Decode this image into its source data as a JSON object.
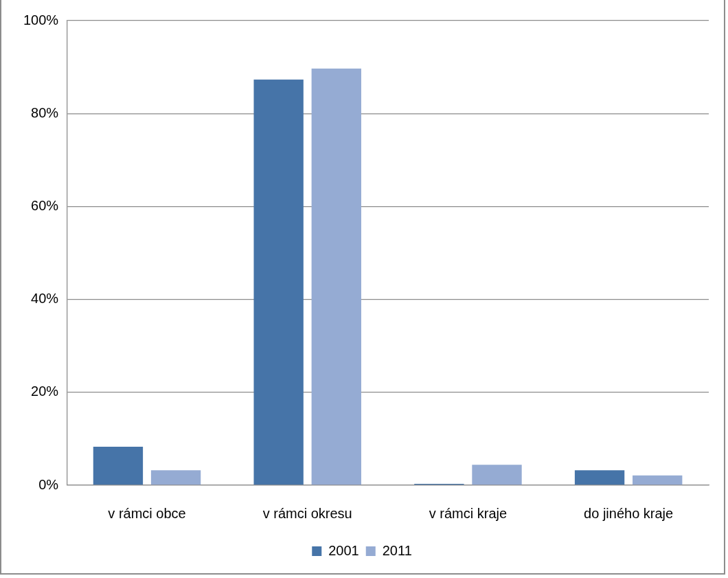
{
  "chart_data": {
    "type": "bar",
    "categories": [
      "v rámci obce",
      "v rámci okresu",
      "v rámci kraje",
      "do jiného kraje"
    ],
    "series": [
      {
        "name": "2001",
        "color": "#4674a8",
        "values": [
          8.3,
          87.3,
          0.3,
          3.2
        ]
      },
      {
        "name": "2011",
        "color": "#95abd3",
        "values": [
          3.2,
          89.7,
          4.4,
          2.1
        ]
      }
    ],
    "ylim": [
      0,
      100
    ],
    "yticks": [
      {
        "value": 0,
        "label": "0%"
      },
      {
        "value": 20,
        "label": "20%"
      },
      {
        "value": 40,
        "label": "40%"
      },
      {
        "value": 60,
        "label": "60%"
      },
      {
        "value": 80,
        "label": "80%"
      },
      {
        "value": 100,
        "label": "100%"
      }
    ],
    "grid": "y",
    "legend": "bottom"
  }
}
